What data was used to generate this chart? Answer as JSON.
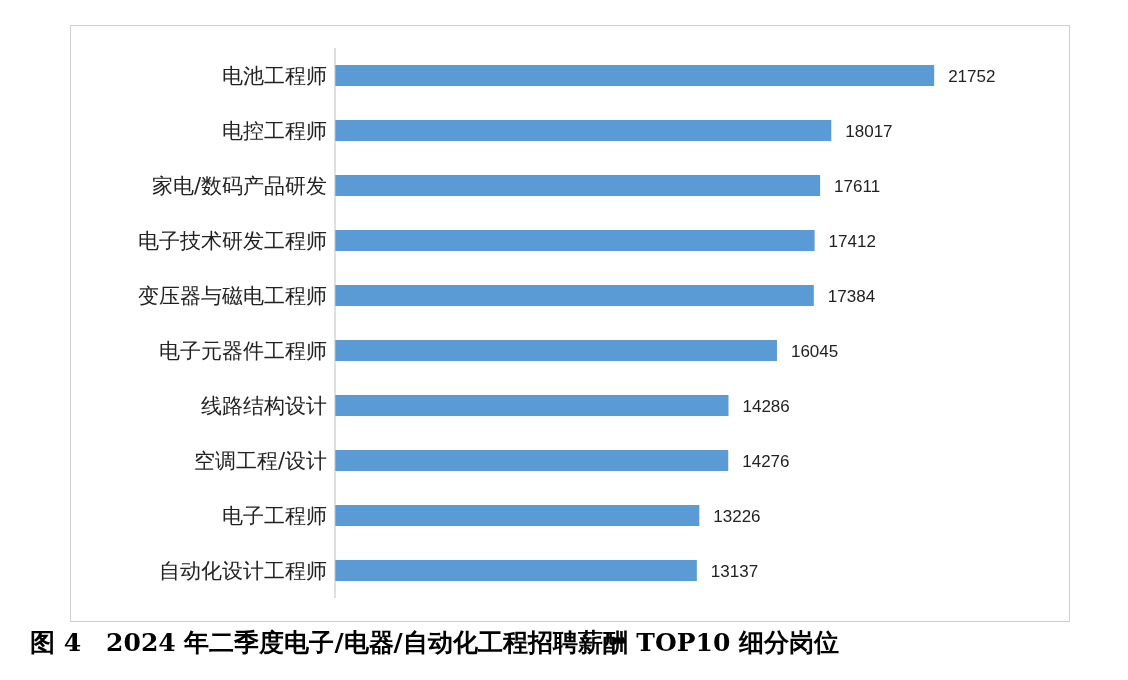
{
  "chart_data": {
    "type": "bar",
    "orientation": "horizontal",
    "title": "图 4　2024 年二季度电子/电器/自动化工程招聘薪酬 TOP10 细分岗位",
    "categories": [
      "电池工程师",
      "电控工程师",
      "家电/数码产品研发",
      "电子技术研发工程师",
      "变压器与磁电工程师",
      "电子元器件工程师",
      "线路结构设计",
      "空调工程/设计",
      "电子工程师",
      "自动化设计工程师"
    ],
    "values": [
      21752,
      18017,
      17611,
      17412,
      17384,
      16045,
      14286,
      14276,
      13226,
      13137
    ],
    "color": "#5b9bd5",
    "data_labels": true,
    "grid": false
  }
}
